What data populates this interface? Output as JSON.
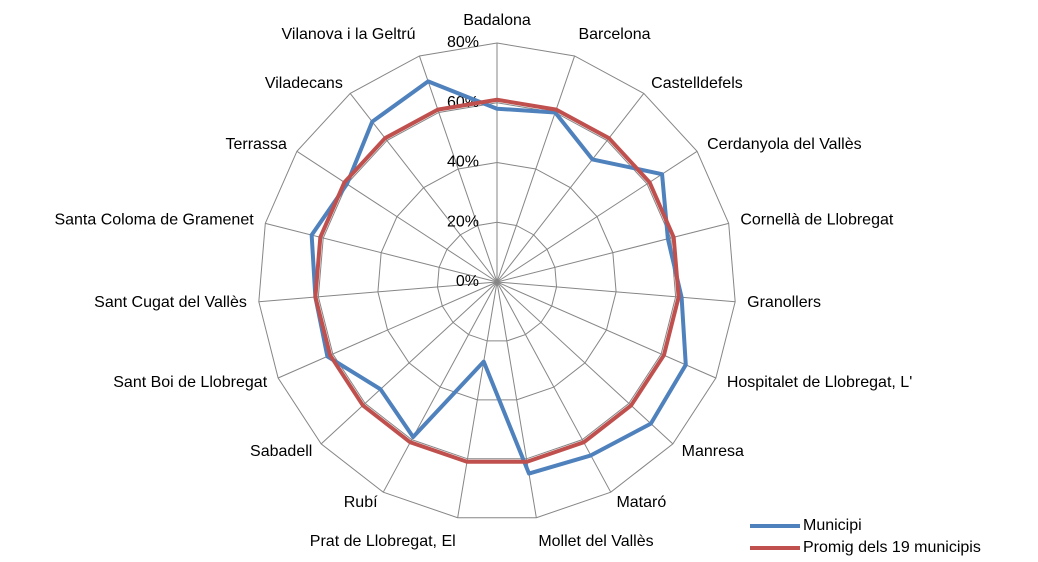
{
  "chart_data": {
    "type": "radar",
    "categories": [
      "Badalona",
      "Barcelona",
      "Castelldefels",
      "Cerdanyola del Vallès",
      "Cornellà de Llobregat",
      "Granollers",
      "Hospitalet de Llobregat, L'",
      "Manresa",
      "Mataró",
      "Mollet del Vallès",
      "Prat de Llobregat, El",
      "Rubí",
      "Sabadell",
      "Sant Boi de Llobregat",
      "Sant Cugat del Vallès",
      "Santa Coloma de Gramenet",
      "Terrassa",
      "Viladecans",
      "Vilanova i la Geltrú"
    ],
    "series": [
      {
        "name": "Municipi",
        "color": "#4f81bd",
        "values": [
          58,
          60,
          52,
          66,
          59,
          62,
          69,
          70,
          66,
          65,
          27,
          59,
          53,
          62,
          61,
          64,
          60,
          68,
          71
        ]
      },
      {
        "name": "Promig dels 19 municipis",
        "color": "#c0504d",
        "values": [
          61,
          61,
          61,
          61,
          61,
          61,
          61,
          61,
          61,
          61,
          61,
          61,
          61,
          61,
          61,
          61,
          61,
          61,
          61
        ]
      }
    ],
    "rlim": [
      0,
      80
    ],
    "rticks": [
      {
        "value": 0,
        "label": "0%"
      },
      {
        "value": 20,
        "label": "20%"
      },
      {
        "value": 40,
        "label": "40%"
      },
      {
        "value": 60,
        "label": "60%"
      },
      {
        "value": 80,
        "label": "80%"
      }
    ],
    "grid": true,
    "legend": "bottom-right"
  }
}
